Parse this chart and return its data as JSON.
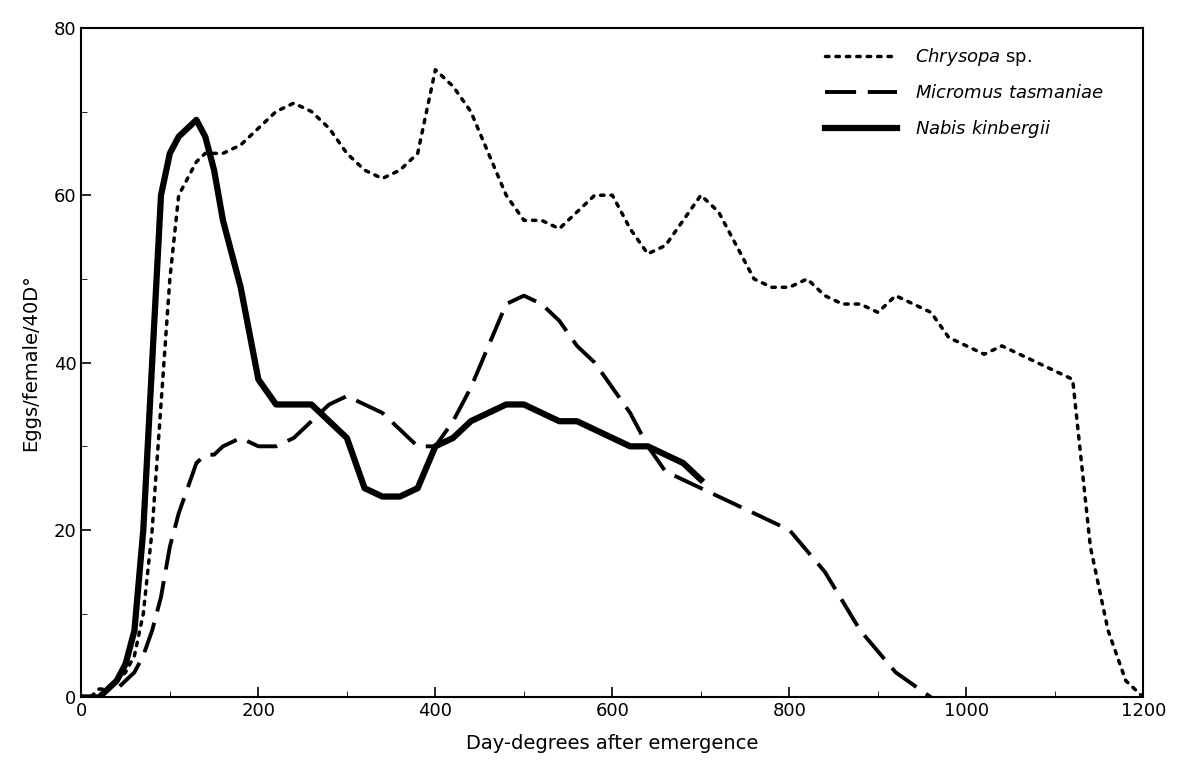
{
  "chrysopa_x": [
    0,
    10,
    20,
    30,
    40,
    50,
    60,
    70,
    80,
    90,
    100,
    110,
    120,
    130,
    140,
    150,
    160,
    180,
    200,
    220,
    240,
    260,
    280,
    300,
    320,
    340,
    360,
    380,
    400,
    420,
    440,
    460,
    480,
    500,
    520,
    540,
    560,
    580,
    600,
    620,
    640,
    660,
    680,
    700,
    720,
    740,
    760,
    780,
    800,
    820,
    840,
    860,
    880,
    900,
    920,
    940,
    960,
    980,
    1000,
    1020,
    1040,
    1060,
    1080,
    1100,
    1120,
    1140,
    1160,
    1180,
    1200
  ],
  "chrysopa_y": [
    0,
    0,
    1,
    1,
    2,
    3,
    5,
    10,
    20,
    35,
    50,
    60,
    62,
    64,
    65,
    65,
    65,
    66,
    68,
    70,
    71,
    70,
    68,
    65,
    63,
    62,
    63,
    65,
    75,
    73,
    70,
    65,
    60,
    57,
    57,
    56,
    58,
    60,
    60,
    56,
    53,
    54,
    57,
    60,
    58,
    54,
    50,
    49,
    49,
    50,
    48,
    47,
    47,
    46,
    48,
    47,
    46,
    43,
    42,
    41,
    42,
    41,
    40,
    39,
    38,
    18,
    8,
    2,
    0
  ],
  "micromus_x": [
    0,
    10,
    20,
    30,
    40,
    50,
    60,
    70,
    80,
    90,
    100,
    110,
    120,
    130,
    140,
    150,
    160,
    180,
    200,
    220,
    240,
    260,
    280,
    300,
    320,
    340,
    360,
    380,
    400,
    420,
    440,
    460,
    480,
    500,
    520,
    540,
    560,
    580,
    600,
    620,
    640,
    660,
    680,
    700,
    720,
    740,
    760,
    800,
    840,
    880,
    920,
    960
  ],
  "micromus_y": [
    0,
    0,
    0,
    1,
    1,
    2,
    3,
    5,
    8,
    12,
    18,
    22,
    25,
    28,
    29,
    29,
    30,
    31,
    30,
    30,
    31,
    33,
    35,
    36,
    35,
    34,
    32,
    30,
    30,
    33,
    37,
    42,
    47,
    48,
    47,
    45,
    42,
    40,
    37,
    34,
    30,
    27,
    26,
    25,
    24,
    23,
    22,
    20,
    15,
    8,
    3,
    0
  ],
  "nabis_x": [
    0,
    10,
    20,
    30,
    40,
    50,
    60,
    70,
    80,
    90,
    100,
    110,
    120,
    130,
    140,
    150,
    160,
    180,
    200,
    220,
    240,
    260,
    280,
    300,
    320,
    340,
    360,
    380,
    400,
    420,
    440,
    460,
    480,
    500,
    520,
    540,
    560,
    580,
    600,
    620,
    640,
    660,
    680,
    700
  ],
  "nabis_y": [
    0,
    0,
    0,
    1,
    2,
    4,
    8,
    20,
    40,
    60,
    65,
    67,
    68,
    69,
    67,
    63,
    57,
    49,
    38,
    35,
    35,
    35,
    33,
    31,
    25,
    24,
    24,
    25,
    30,
    31,
    33,
    34,
    35,
    35,
    34,
    33,
    33,
    32,
    31,
    30,
    30,
    29,
    28,
    26
  ],
  "xlim": [
    0,
    1200
  ],
  "ylim": [
    0,
    80
  ],
  "xticks": [
    0,
    200,
    400,
    600,
    800,
    1000,
    1200
  ],
  "yticks": [
    0,
    20,
    40,
    60,
    80
  ],
  "xlabel": "Day-degrees after emergence",
  "ylabel": "Eggs/female/40D°",
  "background_color": "#ffffff"
}
